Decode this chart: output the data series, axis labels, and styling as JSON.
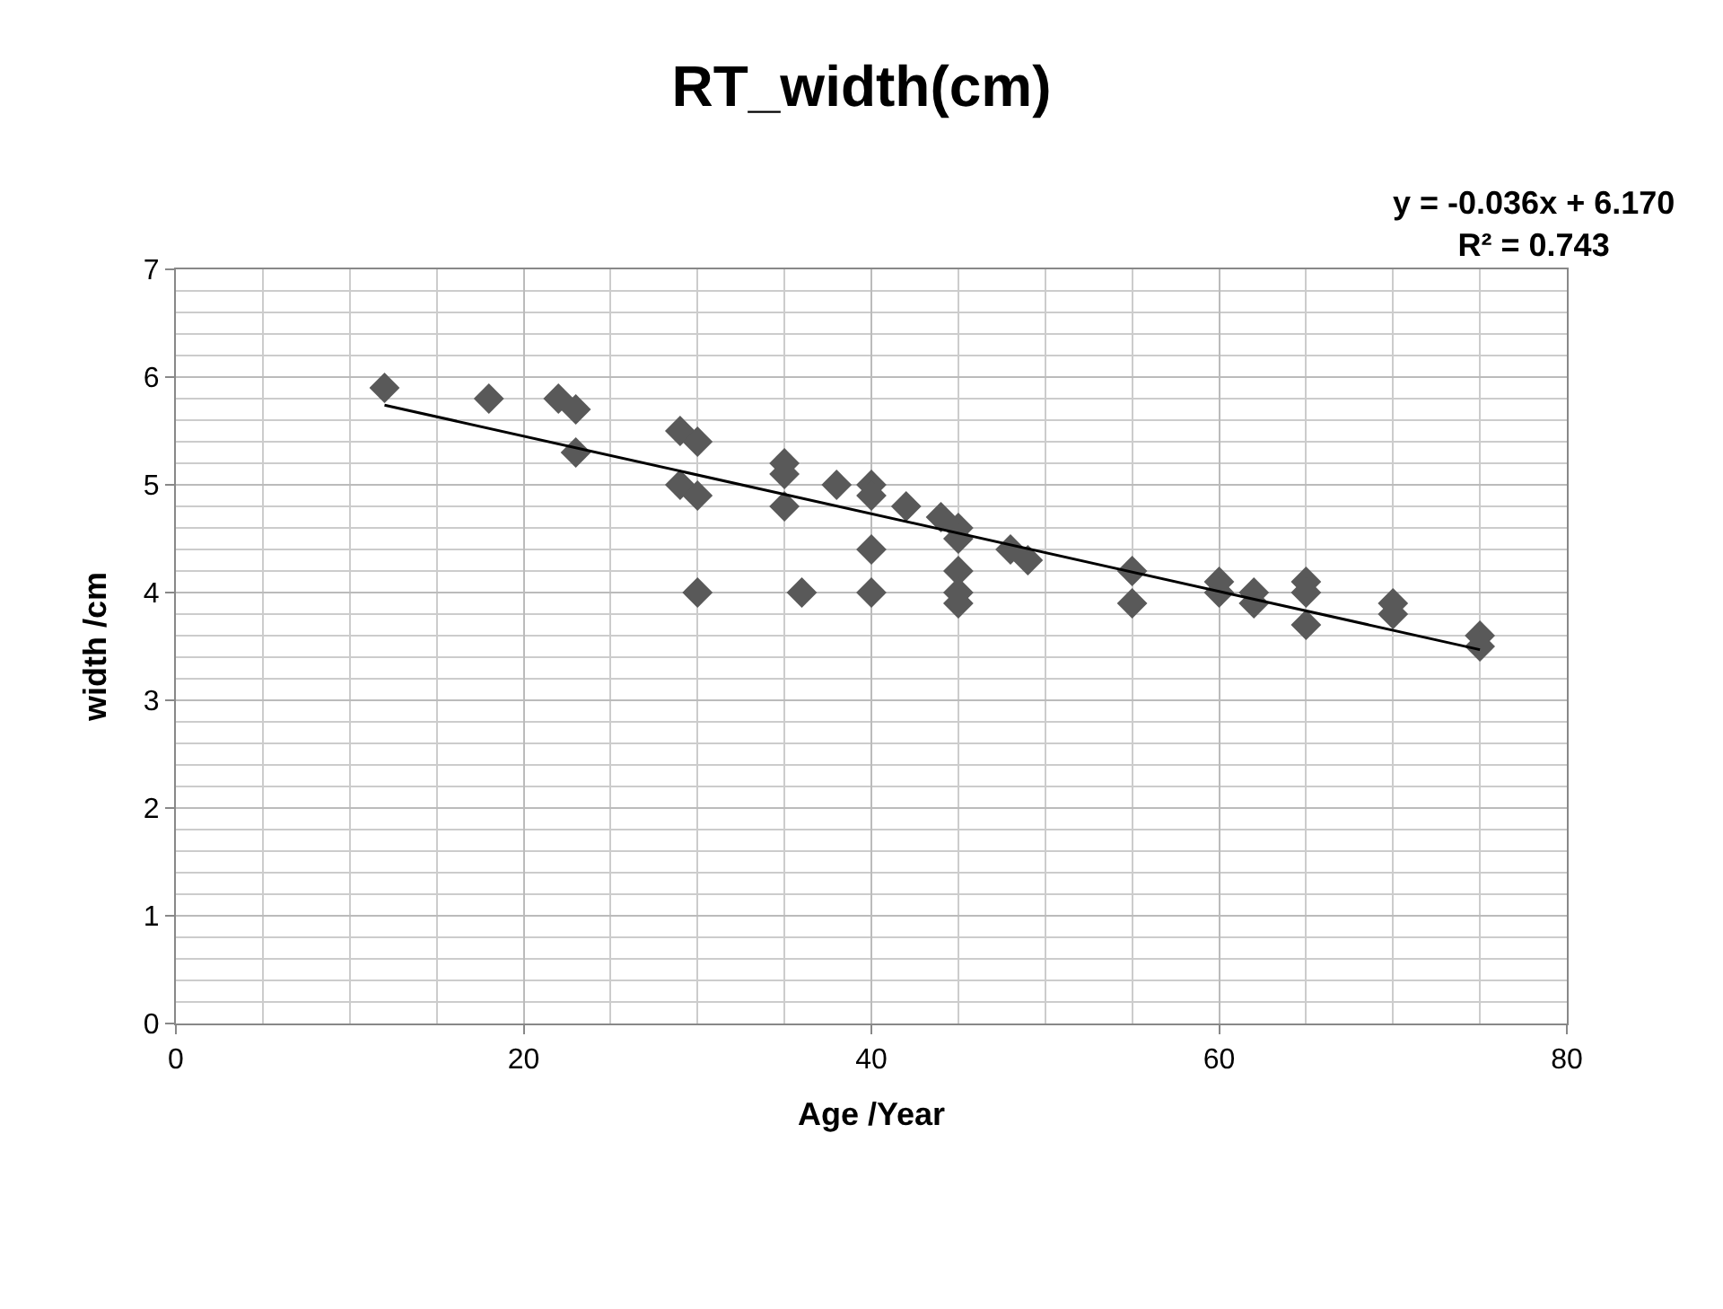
{
  "chart_data": {
    "type": "scatter",
    "title": "RT_width(cm)",
    "xlabel": "Age /Year",
    "ylabel": "width /cm",
    "annotations": [
      "y = -0.036x + 6.170\nR² = 0.743"
    ],
    "series": [
      {
        "color": "#595959",
        "marker": "diamond",
        "x": [
          12,
          18,
          22,
          23,
          23,
          29,
          30,
          29,
          30,
          30,
          35,
          35,
          35,
          36,
          38,
          40,
          40,
          40,
          40,
          42,
          44,
          45,
          45,
          45,
          45,
          45,
          48,
          49,
          55,
          55,
          60,
          60,
          62,
          62,
          65,
          65,
          65,
          70,
          70,
          75,
          75
        ],
        "values": [
          5.9,
          5.8,
          5.8,
          5.7,
          5.3,
          5.5,
          5.4,
          5.0,
          4.9,
          4.0,
          5.2,
          5.1,
          4.8,
          4.0,
          5.0,
          5.0,
          4.9,
          4.4,
          4.0,
          4.8,
          4.7,
          4.6,
          4.5,
          4.2,
          4.0,
          3.9,
          4.4,
          4.3,
          4.2,
          3.9,
          4.1,
          4.0,
          4.0,
          3.9,
          4.1,
          4.0,
          3.7,
          3.9,
          3.8,
          3.6,
          3.5
        ]
      },
      {
        "type": "line",
        "color": "#000000",
        "x": [
          12,
          75
        ],
        "values": [
          5.74,
          3.47
        ]
      }
    ],
    "xlim": [
      0,
      80
    ],
    "xticks": [
      0,
      20,
      40,
      60,
      80
    ],
    "ylim": [
      0,
      7
    ],
    "yticks": [
      0,
      1,
      2,
      3,
      4,
      5,
      6,
      7
    ],
    "grid": true
  }
}
